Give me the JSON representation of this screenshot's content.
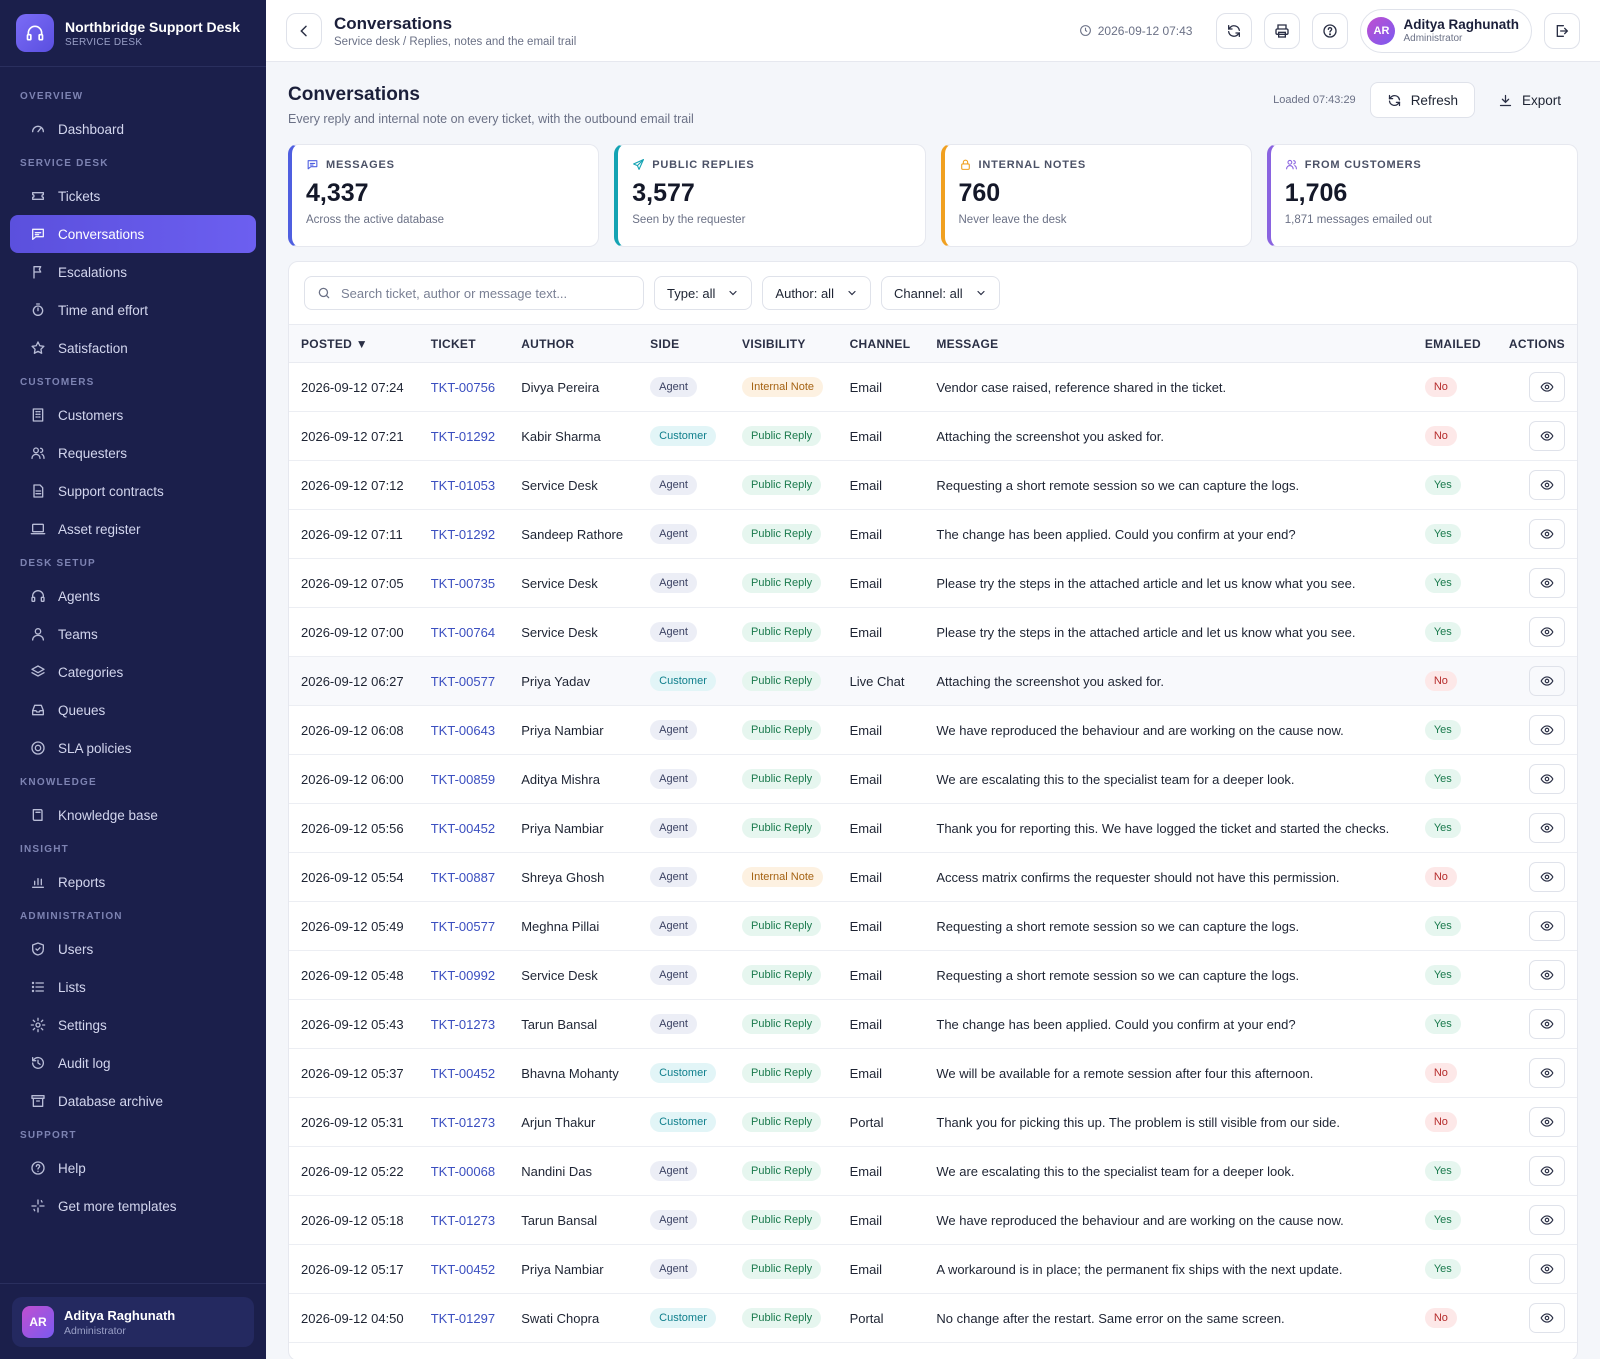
{
  "brand": {
    "title": "Northbridge Support Desk",
    "subtitle": "SERVICE DESK"
  },
  "nav": {
    "sections": [
      {
        "label": "OVERVIEW",
        "items": [
          {
            "label": "Dashboard",
            "icon": "gauge-icon"
          }
        ]
      },
      {
        "label": "SERVICE DESK",
        "items": [
          {
            "label": "Tickets",
            "icon": "ticket-icon"
          },
          {
            "label": "Conversations",
            "icon": "chat-icon",
            "active": true
          },
          {
            "label": "Escalations",
            "icon": "flag-icon"
          },
          {
            "label": "Time and effort",
            "icon": "stopwatch-icon"
          },
          {
            "label": "Satisfaction",
            "icon": "star-icon"
          }
        ]
      },
      {
        "label": "CUSTOMERS",
        "items": [
          {
            "label": "Customers",
            "icon": "building-icon"
          },
          {
            "label": "Requesters",
            "icon": "users-icon"
          },
          {
            "label": "Support contracts",
            "icon": "document-icon"
          },
          {
            "label": "Asset register",
            "icon": "laptop-icon"
          }
        ]
      },
      {
        "label": "DESK SETUP",
        "items": [
          {
            "label": "Agents",
            "icon": "headset-icon"
          },
          {
            "label": "Teams",
            "icon": "user-icon"
          },
          {
            "label": "Categories",
            "icon": "layers-icon"
          },
          {
            "label": "Queues",
            "icon": "inbox-icon"
          },
          {
            "label": "SLA policies",
            "icon": "target-icon"
          }
        ]
      },
      {
        "label": "KNOWLEDGE",
        "items": [
          {
            "label": "Knowledge base",
            "icon": "book-icon"
          }
        ]
      },
      {
        "label": "INSIGHT",
        "items": [
          {
            "label": "Reports",
            "icon": "bar-chart-icon"
          }
        ]
      },
      {
        "label": "ADMINISTRATION",
        "items": [
          {
            "label": "Users",
            "icon": "shield-icon"
          },
          {
            "label": "Lists",
            "icon": "list-icon"
          },
          {
            "label": "Settings",
            "icon": "gear-icon"
          },
          {
            "label": "Audit log",
            "icon": "history-icon"
          },
          {
            "label": "Database archive",
            "icon": "archive-icon"
          }
        ]
      },
      {
        "label": "SUPPORT",
        "items": [
          {
            "label": "Help",
            "icon": "help-icon"
          },
          {
            "label": "Get more templates",
            "icon": "sparkle-icon"
          }
        ]
      }
    ]
  },
  "sidebar_user": {
    "initials": "AR",
    "name": "Aditya Raghunath",
    "role": "Administrator"
  },
  "topbar": {
    "title": "Conversations",
    "breadcrumb": "Service desk / Replies, notes and the email trail",
    "datetime": "2026-09-12 07:43",
    "user": {
      "initials": "AR",
      "name": "Aditya Raghunath",
      "role": "Administrator"
    }
  },
  "page": {
    "title": "Conversations",
    "subtitle": "Every reply and internal note on every ticket, with the outbound email trail",
    "loaded": "Loaded 07:43:29",
    "refresh_label": "Refresh",
    "export_label": "Export"
  },
  "stats": [
    {
      "label": "MESSAGES",
      "value": "4,337",
      "note": "Across the active database",
      "color": "#4f5fe0",
      "icon": "chat-icon"
    },
    {
      "label": "PUBLIC REPLIES",
      "value": "3,577",
      "note": "Seen by the requester",
      "color": "#14a3b3",
      "icon": "send-icon"
    },
    {
      "label": "INTERNAL NOTES",
      "value": "760",
      "note": "Never leave the desk",
      "color": "#f0a020",
      "icon": "lock-icon"
    },
    {
      "label": "FROM CUSTOMERS",
      "value": "1,706",
      "note": "1,871 messages emailed out",
      "color": "#8a63e0",
      "icon": "users-icon"
    }
  ],
  "filters": {
    "search_placeholder": "Search ticket, author or message text...",
    "type": "Type: all",
    "author": "Author: all",
    "channel": "Channel: all"
  },
  "table": {
    "columns": [
      "POSTED ▼",
      "TICKET",
      "AUTHOR",
      "SIDE",
      "VISIBILITY",
      "CHANNEL",
      "MESSAGE",
      "EMAILED",
      "ACTIONS"
    ],
    "rows": [
      {
        "posted": "2026-09-12 07:24",
        "ticket": "TKT-00756",
        "author": "Divya Pereira",
        "side": "Agent",
        "visibility": "Internal Note",
        "channel": "Email",
        "message": "Vendor case raised, reference shared in the ticket.",
        "emailed": "No"
      },
      {
        "posted": "2026-09-12 07:21",
        "ticket": "TKT-01292",
        "author": "Kabir Sharma",
        "side": "Customer",
        "visibility": "Public Reply",
        "channel": "Email",
        "message": "Attaching the screenshot you asked for.",
        "emailed": "No"
      },
      {
        "posted": "2026-09-12 07:12",
        "ticket": "TKT-01053",
        "author": "Service Desk",
        "side": "Agent",
        "visibility": "Public Reply",
        "channel": "Email",
        "message": "Requesting a short remote session so we can capture the logs.",
        "emailed": "Yes"
      },
      {
        "posted": "2026-09-12 07:11",
        "ticket": "TKT-01292",
        "author": "Sandeep Rathore",
        "side": "Agent",
        "visibility": "Public Reply",
        "channel": "Email",
        "message": "The change has been applied. Could you confirm at your end?",
        "emailed": "Yes"
      },
      {
        "posted": "2026-09-12 07:05",
        "ticket": "TKT-00735",
        "author": "Service Desk",
        "side": "Agent",
        "visibility": "Public Reply",
        "channel": "Email",
        "message": "Please try the steps in the attached article and let us know what you see.",
        "emailed": "Yes"
      },
      {
        "posted": "2026-09-12 07:00",
        "ticket": "TKT-00764",
        "author": "Service Desk",
        "side": "Agent",
        "visibility": "Public Reply",
        "channel": "Email",
        "message": "Please try the steps in the attached article and let us know what you see.",
        "emailed": "Yes"
      },
      {
        "posted": "2026-09-12 06:27",
        "ticket": "TKT-00577",
        "author": "Priya Yadav",
        "side": "Customer",
        "visibility": "Public Reply",
        "channel": "Live Chat",
        "message": "Attaching the screenshot you asked for.",
        "emailed": "No",
        "highlight": true
      },
      {
        "posted": "2026-09-12 06:08",
        "ticket": "TKT-00643",
        "author": "Priya Nambiar",
        "side": "Agent",
        "visibility": "Public Reply",
        "channel": "Email",
        "message": "We have reproduced the behaviour and are working on the cause now.",
        "emailed": "Yes"
      },
      {
        "posted": "2026-09-12 06:00",
        "ticket": "TKT-00859",
        "author": "Aditya Mishra",
        "side": "Agent",
        "visibility": "Public Reply",
        "channel": "Email",
        "message": "We are escalating this to the specialist team for a deeper look.",
        "emailed": "Yes"
      },
      {
        "posted": "2026-09-12 05:56",
        "ticket": "TKT-00452",
        "author": "Priya Nambiar",
        "side": "Agent",
        "visibility": "Public Reply",
        "channel": "Email",
        "message": "Thank you for reporting this. We have logged the ticket and started the checks.",
        "emailed": "Yes"
      },
      {
        "posted": "2026-09-12 05:54",
        "ticket": "TKT-00887",
        "author": "Shreya Ghosh",
        "side": "Agent",
        "visibility": "Internal Note",
        "channel": "Email",
        "message": "Access matrix confirms the requester should not have this permission.",
        "emailed": "No"
      },
      {
        "posted": "2026-09-12 05:49",
        "ticket": "TKT-00577",
        "author": "Meghna Pillai",
        "side": "Agent",
        "visibility": "Public Reply",
        "channel": "Email",
        "message": "Requesting a short remote session so we can capture the logs.",
        "emailed": "Yes"
      },
      {
        "posted": "2026-09-12 05:48",
        "ticket": "TKT-00992",
        "author": "Service Desk",
        "side": "Agent",
        "visibility": "Public Reply",
        "channel": "Email",
        "message": "Requesting a short remote session so we can capture the logs.",
        "emailed": "Yes"
      },
      {
        "posted": "2026-09-12 05:43",
        "ticket": "TKT-01273",
        "author": "Tarun Bansal",
        "side": "Agent",
        "visibility": "Public Reply",
        "channel": "Email",
        "message": "The change has been applied. Could you confirm at your end?",
        "emailed": "Yes"
      },
      {
        "posted": "2026-09-12 05:37",
        "ticket": "TKT-00452",
        "author": "Bhavna Mohanty",
        "side": "Customer",
        "visibility": "Public Reply",
        "channel": "Email",
        "message": "We will be available for a remote session after four this afternoon.",
        "emailed": "No"
      },
      {
        "posted": "2026-09-12 05:31",
        "ticket": "TKT-01273",
        "author": "Arjun Thakur",
        "side": "Customer",
        "visibility": "Public Reply",
        "channel": "Portal",
        "message": "Thank you for picking this up. The problem is still visible from our side.",
        "emailed": "No"
      },
      {
        "posted": "2026-09-12 05:22",
        "ticket": "TKT-00068",
        "author": "Nandini Das",
        "side": "Agent",
        "visibility": "Public Reply",
        "channel": "Email",
        "message": "We are escalating this to the specialist team for a deeper look.",
        "emailed": "Yes"
      },
      {
        "posted": "2026-09-12 05:18",
        "ticket": "TKT-01273",
        "author": "Tarun Bansal",
        "side": "Agent",
        "visibility": "Public Reply",
        "channel": "Email",
        "message": "We have reproduced the behaviour and are working on the cause now.",
        "emailed": "Yes"
      },
      {
        "posted": "2026-09-12 05:17",
        "ticket": "TKT-00452",
        "author": "Priya Nambiar",
        "side": "Agent",
        "visibility": "Public Reply",
        "channel": "Email",
        "message": "A workaround is in place; the permanent fix ships with the next update.",
        "emailed": "Yes"
      },
      {
        "posted": "2026-09-12 04:50",
        "ticket": "TKT-01297",
        "author": "Swati Chopra",
        "side": "Customer",
        "visibility": "Public Reply",
        "channel": "Portal",
        "message": "No change after the restart. Same error on the same screen.",
        "emailed": "No"
      }
    ]
  }
}
